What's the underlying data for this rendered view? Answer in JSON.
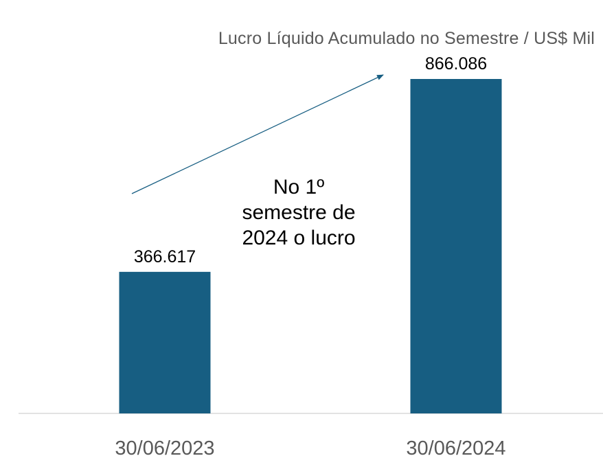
{
  "chart_data": {
    "type": "bar",
    "title": "Lucro Líquido Acumulado no Semestre / US$ Mil",
    "categories": [
      "30/06/2023",
      "30/06/2024"
    ],
    "values": [
      366617,
      866086
    ],
    "value_labels": [
      "366.617",
      "866.086"
    ],
    "ylim": [
      0,
      900000
    ],
    "grid": false,
    "legend": "none",
    "bar_color": "#175e82",
    "annotation": "No 1º semestre de 2024 o lucro",
    "arrow_color": "#175e82"
  }
}
